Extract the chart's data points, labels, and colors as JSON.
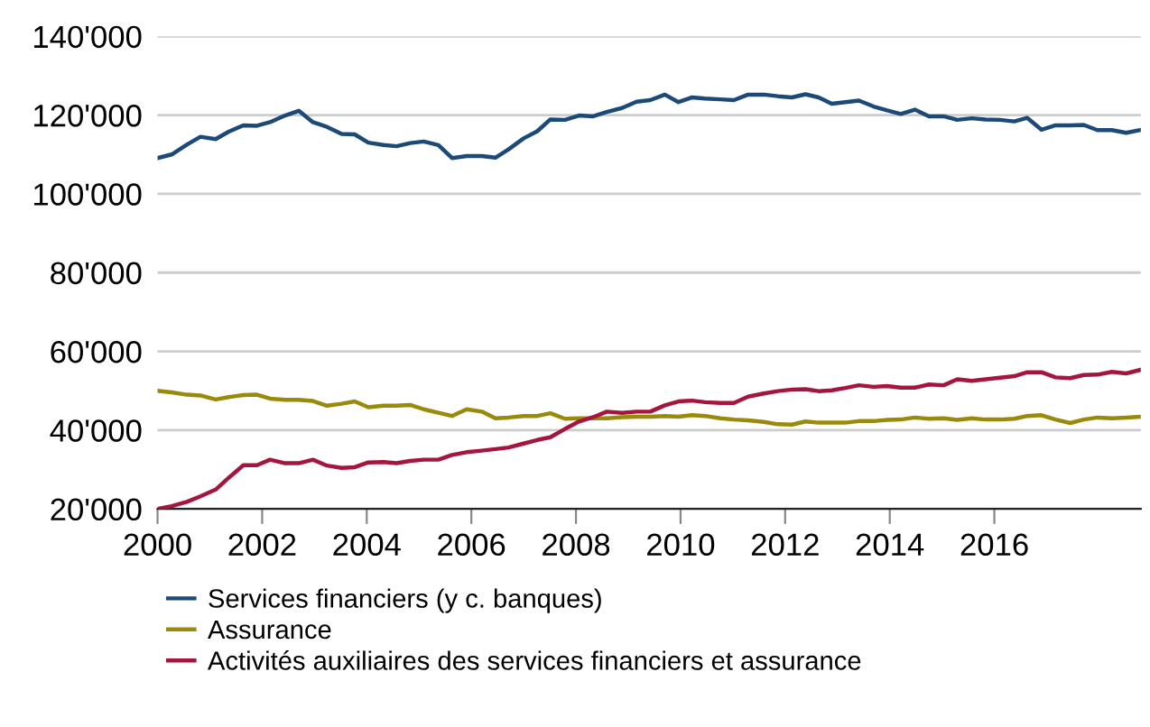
{
  "chart_data": {
    "type": "line",
    "x": [
      2000,
      2000.27,
      2000.56,
      2000.82,
      2001.11,
      2001.36,
      2001.64,
      2001.9,
      2002.15,
      2002.44,
      2002.7,
      2002.97,
      2003.24,
      2003.52,
      2003.77,
      2004.03,
      2004.32,
      2004.57,
      2004.83,
      2005.09,
      2005.37,
      2005.63,
      2005.91,
      2006.2,
      2006.46,
      2006.71,
      2007,
      2007.26,
      2007.51,
      2007.79,
      2008.06,
      2008.33,
      2008.59,
      2008.88,
      2009.16,
      2009.42,
      2009.7,
      2009.96,
      2010.22,
      2010.47,
      2010.76,
      2011.02,
      2011.29,
      2011.59,
      2011.86,
      2012.13,
      2012.39,
      2012.64,
      2012.89,
      2013.15,
      2013.41,
      2013.69,
      2013.95,
      2014.21,
      2014.48,
      2014.75,
      2015.03,
      2015.29,
      2015.57,
      2015.83,
      2016.11,
      2016.38,
      2016.63,
      2016.9,
      2017.17,
      2017.45,
      2017.71,
      2017.97,
      2018.25,
      2018.52,
      2018.79
    ],
    "series": [
      {
        "name": "Services financiers (y c. banques)",
        "color": "#1c4a78",
        "values": [
          109100,
          110000,
          112500,
          114500,
          113900,
          115800,
          117400,
          117300,
          118200,
          119900,
          121100,
          118200,
          117000,
          115200,
          115100,
          113000,
          112400,
          112100,
          112900,
          113300,
          112400,
          109100,
          109600,
          109600,
          109200,
          111300,
          114100,
          115900,
          118900,
          118800,
          119900,
          119700,
          120800,
          121800,
          123400,
          123800,
          125200,
          123300,
          124500,
          124200,
          124000,
          123800,
          125200,
          125200,
          124800,
          124500,
          125300,
          124500,
          122900,
          123300,
          123700,
          122200,
          121200,
          120300,
          121400,
          119700,
          119700,
          118800,
          119200,
          118900,
          118800,
          118400,
          119300,
          116300,
          117400,
          117400,
          117500,
          116200,
          116200,
          115500,
          116200
        ]
      },
      {
        "name": "Assurance",
        "color": "#9a8a0c",
        "values": [
          50000,
          49600,
          49000,
          48800,
          47800,
          48400,
          48900,
          49000,
          48000,
          47700,
          47700,
          47400,
          46200,
          46700,
          47300,
          45800,
          46200,
          46200,
          46400,
          45300,
          44400,
          43600,
          45300,
          44700,
          43000,
          43200,
          43600,
          43600,
          44300,
          42900,
          43000,
          43000,
          43000,
          43300,
          43400,
          43400,
          43600,
          43400,
          43800,
          43600,
          43000,
          42700,
          42500,
          42100,
          41500,
          41400,
          42200,
          41900,
          41900,
          41900,
          42300,
          42300,
          42600,
          42700,
          43200,
          42900,
          43000,
          42600,
          43000,
          42700,
          42700,
          42900,
          43600,
          43800,
          42700,
          41800,
          42700,
          43200,
          43000,
          43200,
          43400
        ]
      },
      {
        "name": "Activités auxiliaires des services financiers et assurance",
        "color": "#a5163e",
        "values": [
          20000,
          20700,
          21800,
          23200,
          24900,
          27900,
          31100,
          31100,
          32500,
          31600,
          31600,
          32500,
          31000,
          30400,
          30600,
          31800,
          31900,
          31600,
          32200,
          32500,
          32500,
          33700,
          34400,
          34800,
          35200,
          35600,
          36600,
          37500,
          38200,
          40300,
          42200,
          43300,
          44700,
          44400,
          44700,
          44700,
          46300,
          47300,
          47500,
          47100,
          46900,
          46900,
          48500,
          49300,
          49900,
          50300,
          50400,
          49900,
          50100,
          50700,
          51400,
          51000,
          51200,
          50800,
          50800,
          51600,
          51400,
          52900,
          52500,
          52900,
          53300,
          53700,
          54700,
          54700,
          53400,
          53200,
          54000,
          54100,
          54800,
          54400,
          55300
        ]
      }
    ],
    "xlim": [
      2000,
      2018.8
    ],
    "xticks": [
      2000,
      2002,
      2004,
      2006,
      2008,
      2010,
      2012,
      2014,
      2016
    ],
    "ylim": [
      20000,
      140000
    ],
    "yticks": [
      {
        "value": 20000,
        "label": "20'000"
      },
      {
        "value": 40000,
        "label": "40'000"
      },
      {
        "value": 60000,
        "label": "60'000"
      },
      {
        "value": 80000,
        "label": "80'000"
      },
      {
        "value": 100000,
        "label": "100'000"
      },
      {
        "value": 120000,
        "label": "120'000"
      },
      {
        "value": 140000,
        "label": "140'000"
      }
    ],
    "grid": "y",
    "legend": "bottom",
    "line_style": "solid"
  }
}
